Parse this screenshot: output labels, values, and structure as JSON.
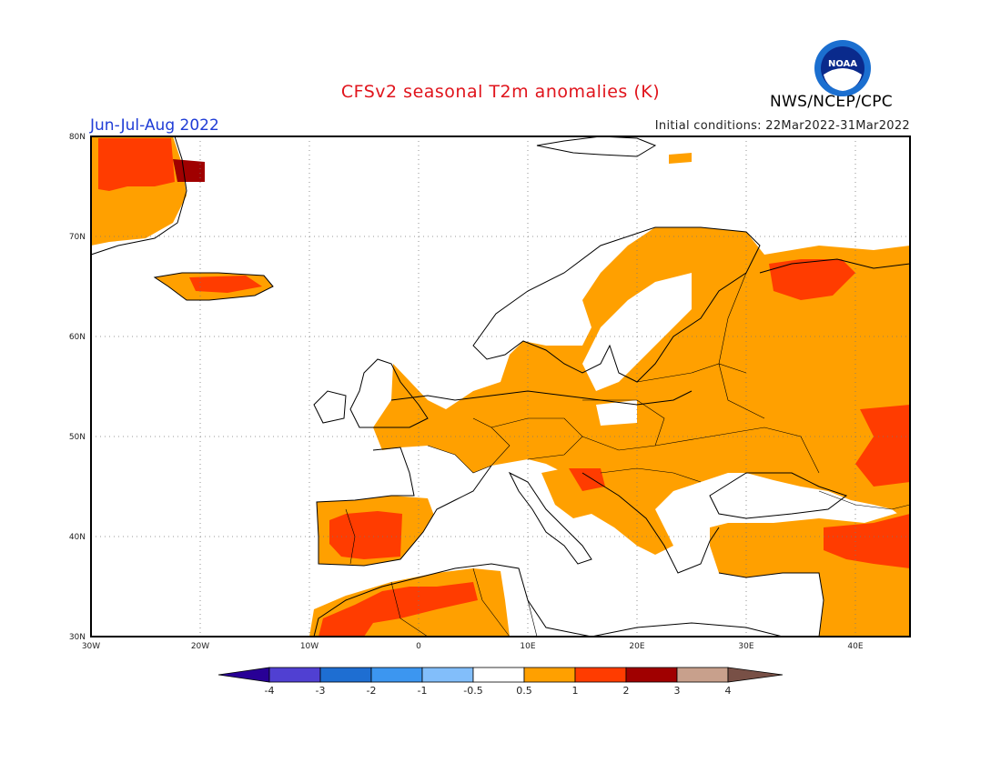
{
  "header": {
    "title": "CFSv2 seasonal T2m anomalies (K)",
    "season": "Jun-Jul-Aug 2022",
    "initial_conditions": "Initial conditions: 22Mar2022-31Mar2022",
    "agency": "NWS/NCEP/CPC",
    "logo_text": "NOAA"
  },
  "map": {
    "lon_labels": [
      "30W",
      "20W",
      "10W",
      "0",
      "10E",
      "20E",
      "30E",
      "40E"
    ],
    "lat_labels": [
      "80N",
      "70N",
      "60N",
      "50N",
      "40N",
      "30N"
    ],
    "lon_range": [
      -30,
      45
    ],
    "lat_range": [
      30,
      80
    ],
    "colors": {
      "land_neutral": "#ffffff",
      "anomaly_05_1": "#ffa000",
      "anomaly_1_2": "#ff3c00",
      "anomaly_2_3": "#a00000",
      "ocean": "#ffffff",
      "coast": "#000000"
    }
  },
  "colorbar": {
    "tick_labels": [
      "-4",
      "-3",
      "-2",
      "-1",
      "-0.5",
      "0.5",
      "1",
      "2",
      "3",
      "4"
    ],
    "colors": [
      "#280096",
      "#5040d2",
      "#1e6ed2",
      "#3c96f0",
      "#82befa",
      "#ffffff",
      "#ffa000",
      "#ff3c00",
      "#a00000",
      "#c8a08c",
      "#785046"
    ]
  }
}
